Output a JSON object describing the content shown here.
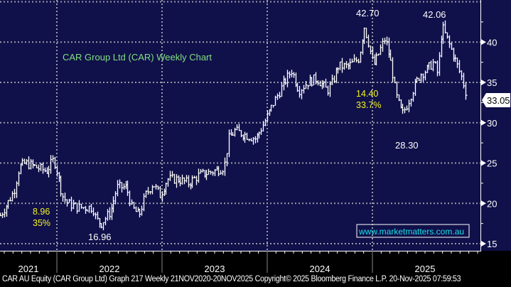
{
  "chart_data": {
    "type": "line",
    "style": "weekly price bars",
    "title": "CAR Group Ltd (CAR) Weekly Chart",
    "xlabel": "",
    "ylabel": "",
    "ylim": [
      14.2,
      45.3
    ],
    "xlim": [
      2021.46,
      2025.97
    ],
    "y_ticks": [
      15,
      20,
      25,
      30,
      35,
      40
    ],
    "x_tick_labels": [
      {
        "label": "2021",
        "start": 2021.0
      },
      {
        "label": "2022",
        "start": 2022.0
      },
      {
        "label": "2023",
        "start": 2023.0
      },
      {
        "label": "2024",
        "start": 2024.0
      },
      {
        "label": "2025",
        "start": 2025.0
      }
    ],
    "grid": true,
    "series": [
      {
        "name": "CAR AU Equity",
        "points": [
          [
            2021.46,
            18.5
          ],
          [
            2021.53,
            20
          ],
          [
            2021.59,
            21.5
          ],
          [
            2021.64,
            24.5
          ],
          [
            2021.7,
            25
          ],
          [
            2021.8,
            24.5
          ],
          [
            2021.9,
            24
          ],
          [
            2021.97,
            25.5
          ],
          [
            2022.0,
            24
          ],
          [
            2022.05,
            21
          ],
          [
            2022.1,
            20
          ],
          [
            2022.2,
            19.5
          ],
          [
            2022.34,
            19.5
          ],
          [
            2022.37,
            18
          ],
          [
            2022.42,
            17.5
          ],
          [
            2022.51,
            19
          ],
          [
            2022.57,
            22
          ],
          [
            2022.66,
            22
          ],
          [
            2022.71,
            19.5
          ],
          [
            2022.78,
            18.5
          ],
          [
            2022.84,
            21
          ],
          [
            2022.91,
            22.5
          ],
          [
            2022.98,
            21
          ],
          [
            2023.05,
            23
          ],
          [
            2023.15,
            23
          ],
          [
            2023.25,
            22.5
          ],
          [
            2023.35,
            23.5
          ],
          [
            2023.49,
            24
          ],
          [
            2023.59,
            24.5
          ],
          [
            2023.63,
            28
          ],
          [
            2023.69,
            29
          ],
          [
            2023.79,
            28.5
          ],
          [
            2023.89,
            28
          ],
          [
            2023.97,
            30
          ],
          [
            2024.06,
            32.5
          ],
          [
            2024.16,
            35
          ],
          [
            2024.23,
            36.5
          ],
          [
            2024.3,
            34
          ],
          [
            2024.38,
            35
          ],
          [
            2024.47,
            35.5
          ],
          [
            2024.57,
            34
          ],
          [
            2024.62,
            35
          ],
          [
            2024.67,
            37
          ],
          [
            2024.77,
            37
          ],
          [
            2024.87,
            38
          ],
          [
            2024.92,
            42
          ],
          [
            2024.96,
            40
          ],
          [
            2025.01,
            37
          ],
          [
            2025.07,
            39
          ],
          [
            2025.12,
            40.5
          ],
          [
            2025.18,
            37
          ],
          [
            2025.22,
            33.5
          ],
          [
            2025.28,
            31
          ],
          [
            2025.32,
            32
          ],
          [
            2025.38,
            34
          ],
          [
            2025.45,
            36
          ],
          [
            2025.51,
            36.5
          ],
          [
            2025.58,
            37.5
          ],
          [
            2025.62,
            36
          ],
          [
            2025.66,
            42
          ],
          [
            2025.72,
            40
          ],
          [
            2025.78,
            38
          ],
          [
            2025.85,
            35.5
          ],
          [
            2025.9,
            33.05
          ]
        ]
      }
    ],
    "annotations": [
      {
        "text": "42.70",
        "x": 2024.92,
        "y": 42.7,
        "color": "#ffffff"
      },
      {
        "text": "42.06",
        "x": 2025.66,
        "y": 42.06,
        "color": "#ffffff"
      },
      {
        "text": "28.30",
        "x": 2025.28,
        "y": 28.3,
        "color": "#ffffff"
      },
      {
        "text": "16.96",
        "x": 2022.42,
        "y": 16.96,
        "color": "#ffffff"
      },
      {
        "text": "8.96",
        "sub": "35%",
        "color": "#f5f51e"
      },
      {
        "text": "14.40",
        "sub": "33.7%",
        "color": "#f5f51e"
      }
    ],
    "last_price": "33.05",
    "watermark": "www.marketmatters.com.au",
    "title_color": "#7fe07f",
    "background": "#10104a"
  },
  "footer": "CAR AU Equity (CAR Group Ltd) Graph 217 Weekly 21NOV2020-20NOV2025  Copyright© 2025 Bloomberg Finance L.P.  20-Nov-2025 07:59:53"
}
